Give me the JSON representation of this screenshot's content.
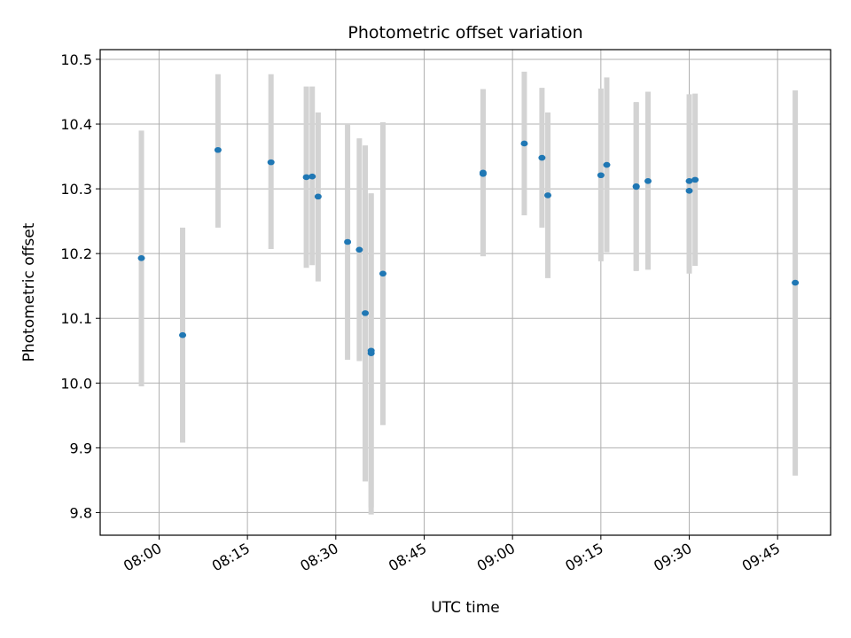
{
  "chart_data": {
    "type": "scatter",
    "title": "Photometric offset variation",
    "xlabel": "UTC time",
    "ylabel": "Photometric offset",
    "x_unit": "UTC time of day (HH:MM)",
    "xlim": [
      "07:50",
      "09:54"
    ],
    "ylim": [
      9.765,
      10.515
    ],
    "x_ticks": [
      "08:00",
      "08:15",
      "08:30",
      "08:45",
      "09:00",
      "09:15",
      "09:30",
      "09:45"
    ],
    "y_ticks": [
      9.8,
      9.9,
      10.0,
      10.1,
      10.2,
      10.3,
      10.4,
      10.5
    ],
    "y_tick_labels": [
      "9.8",
      "9.9",
      "10.0",
      "10.1",
      "10.2",
      "10.3",
      "10.4",
      "10.5"
    ],
    "grid": true,
    "colors": {
      "point": "#1f77b4",
      "errorbar": "#d3d3d3",
      "grid": "#b0b0b0"
    },
    "points": [
      {
        "x": "07:57",
        "y": 10.193,
        "ylow": 9.995,
        "yhigh": 10.39
      },
      {
        "x": "08:04",
        "y": 10.074,
        "ylow": 9.908,
        "yhigh": 10.24
      },
      {
        "x": "08:10",
        "y": 10.36,
        "ylow": 10.24,
        "yhigh": 10.477
      },
      {
        "x": "08:19",
        "y": 10.341,
        "ylow": 10.207,
        "yhigh": 10.477
      },
      {
        "x": "08:25",
        "y": 10.318,
        "ylow": 10.178,
        "yhigh": 10.458
      },
      {
        "x": "08:26",
        "y": 10.319,
        "ylow": 10.182,
        "yhigh": 10.458
      },
      {
        "x": "08:27",
        "y": 10.288,
        "ylow": 10.157,
        "yhigh": 10.418
      },
      {
        "x": "08:32",
        "y": 10.218,
        "ylow": 10.036,
        "yhigh": 10.4
      },
      {
        "x": "08:34",
        "y": 10.206,
        "ylow": 10.034,
        "yhigh": 10.378
      },
      {
        "x": "08:35",
        "y": 10.108,
        "ylow": 9.848,
        "yhigh": 10.367
      },
      {
        "x": "08:36",
        "y": 10.05,
        "ylow": 9.808,
        "yhigh": 10.293
      },
      {
        "x": "08:36",
        "y": 10.046,
        "ylow": 9.797,
        "yhigh": 10.293
      },
      {
        "x": "08:38",
        "y": 10.169,
        "ylow": 9.935,
        "yhigh": 10.403
      },
      {
        "x": "08:55",
        "y": 10.325,
        "ylow": 10.196,
        "yhigh": 10.454
      },
      {
        "x": "08:55",
        "y": 10.323,
        "ylow": 10.196,
        "yhigh": 10.454
      },
      {
        "x": "09:02",
        "y": 10.37,
        "ylow": 10.259,
        "yhigh": 10.481
      },
      {
        "x": "09:05",
        "y": 10.348,
        "ylow": 10.24,
        "yhigh": 10.456
      },
      {
        "x": "09:06",
        "y": 10.29,
        "ylow": 10.162,
        "yhigh": 10.418
      },
      {
        "x": "09:15",
        "y": 10.321,
        "ylow": 10.188,
        "yhigh": 10.455
      },
      {
        "x": "09:16",
        "y": 10.337,
        "ylow": 10.202,
        "yhigh": 10.472
      },
      {
        "x": "09:21",
        "y": 10.303,
        "ylow": 10.173,
        "yhigh": 10.433
      },
      {
        "x": "09:21",
        "y": 10.304,
        "ylow": 10.174,
        "yhigh": 10.434
      },
      {
        "x": "09:23",
        "y": 10.312,
        "ylow": 10.175,
        "yhigh": 10.45
      },
      {
        "x": "09:30",
        "y": 10.297,
        "ylow": 10.169,
        "yhigh": 10.425
      },
      {
        "x": "09:30",
        "y": 10.312,
        "ylow": 10.178,
        "yhigh": 10.446
      },
      {
        "x": "09:31",
        "y": 10.314,
        "ylow": 10.181,
        "yhigh": 10.447
      },
      {
        "x": "09:48",
        "y": 10.155,
        "ylow": 9.857,
        "yhigh": 10.452
      }
    ]
  }
}
